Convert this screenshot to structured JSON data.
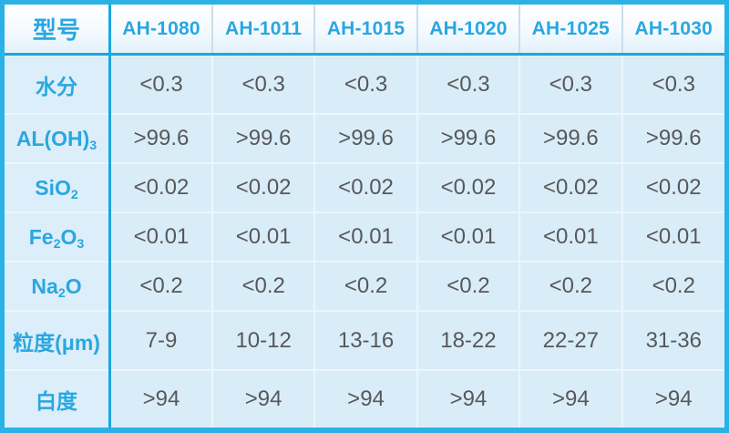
{
  "colors": {
    "accent_cyan": "#29a7e0",
    "outer_border": "#2ab2e6",
    "strong_rule": "#1ba6df",
    "light_rule": "#ecf6fc",
    "cell_background": "#d9edf8",
    "header_background": "#ffffff",
    "value_text": "#57585a"
  },
  "table": {
    "columns": [
      "型号",
      "AH-1080",
      "AH-1011",
      "AH-1015",
      "AH-1020",
      "AH-1025",
      "AH-1030"
    ],
    "rows": [
      {
        "label_parts": [
          {
            "t": "水分"
          }
        ],
        "values": [
          "<0.3",
          "<0.3",
          "<0.3",
          "<0.3",
          "<0.3",
          "<0.3"
        ]
      },
      {
        "label_parts": [
          {
            "t": "AL(OH)"
          },
          {
            "t": "3",
            "sub": true
          }
        ],
        "values": [
          ">99.6",
          ">99.6",
          ">99.6",
          ">99.6",
          ">99.6",
          ">99.6"
        ]
      },
      {
        "label_parts": [
          {
            "t": "SiO"
          },
          {
            "t": "2",
            "sub": true
          }
        ],
        "values": [
          "<0.02",
          "<0.02",
          "<0.02",
          "<0.02",
          "<0.02",
          "<0.02"
        ]
      },
      {
        "label_parts": [
          {
            "t": "Fe"
          },
          {
            "t": "2",
            "sub": true
          },
          {
            "t": "O"
          },
          {
            "t": "3",
            "sub": true
          }
        ],
        "values": [
          "<0.01",
          "<0.01",
          "<0.01",
          "<0.01",
          "<0.01",
          "<0.01"
        ]
      },
      {
        "label_parts": [
          {
            "t": "Na"
          },
          {
            "t": "2",
            "sub": true
          },
          {
            "t": "O"
          }
        ],
        "values": [
          "<0.2",
          "<0.2",
          "<0.2",
          "<0.2",
          "<0.2",
          "<0.2"
        ]
      },
      {
        "label_parts": [
          {
            "t": "粒度(μm)"
          }
        ],
        "values": [
          "7-9",
          "10-12",
          "13-16",
          "18-22",
          "22-27",
          "31-36"
        ]
      },
      {
        "label_parts": [
          {
            "t": "白度"
          }
        ],
        "values": [
          ">94",
          ">94",
          ">94",
          ">94",
          ">94",
          ">94"
        ]
      }
    ]
  }
}
